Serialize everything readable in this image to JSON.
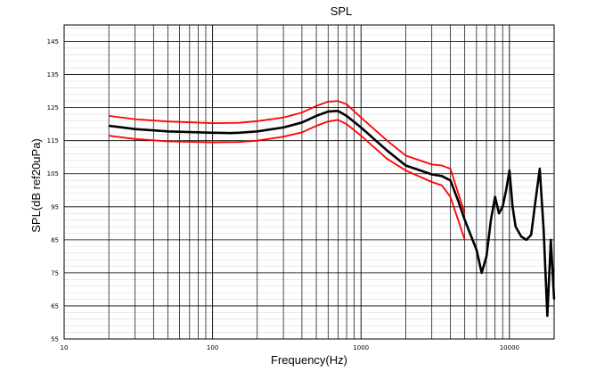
{
  "chart_data": {
    "type": "line",
    "title": "SPL",
    "xlabel": "Frequency(Hz)",
    "ylabel": "SPL(dB ref20uPa)",
    "xscale": "log",
    "xlim": [
      10,
      20000
    ],
    "ylim": [
      55,
      150
    ],
    "grid": true,
    "legend": "none",
    "x_ticks": [
      {
        "value": 10,
        "label": "10"
      },
      {
        "value": 100,
        "label": "100"
      },
      {
        "value": 1000,
        "label": "1000"
      },
      {
        "value": 10000,
        "label": "10000"
      }
    ],
    "y_ticks": [
      {
        "value": 55,
        "label": "55"
      },
      {
        "value": 65,
        "label": "65"
      },
      {
        "value": 75,
        "label": "75"
      },
      {
        "value": 85,
        "label": "85"
      },
      {
        "value": 95,
        "label": "95"
      },
      {
        "value": 105,
        "label": "105"
      },
      {
        "value": 115,
        "label": "115"
      },
      {
        "value": 125,
        "label": "125"
      },
      {
        "value": 135,
        "label": "135"
      },
      {
        "value": 145,
        "label": "145"
      }
    ],
    "series": [
      {
        "color": "#ff0000",
        "x": [
          20,
          30,
          50,
          100,
          150,
          200,
          300,
          400,
          500,
          600,
          700,
          800,
          1000,
          1500,
          2000,
          3000,
          3500,
          4000,
          5000
        ],
        "y": [
          122.5,
          121.5,
          120.8,
          120.3,
          120.4,
          120.9,
          122,
          123.5,
          125.5,
          126.8,
          127,
          126,
          122,
          115,
          110.5,
          107.8,
          107.5,
          106.5,
          93
        ]
      },
      {
        "color": "#000000",
        "x": [
          20,
          30,
          50,
          100,
          130,
          150,
          200,
          300,
          400,
          500,
          600,
          700,
          800,
          1000,
          1500,
          2000,
          3000,
          3500,
          4000,
          4500,
          5000,
          6000,
          6500,
          7000,
          7500,
          8000,
          8500,
          9000,
          9500,
          10000,
          10500,
          11000,
          12000,
          13000,
          14000,
          15000,
          16000,
          17000,
          18000,
          19000,
          20000
        ],
        "y": [
          119.5,
          118.5,
          117.8,
          117.4,
          117.3,
          117.4,
          117.8,
          119,
          120.5,
          122.5,
          123.8,
          124,
          122.5,
          119,
          112,
          107.5,
          104.8,
          104.3,
          103,
          97,
          91,
          82,
          75,
          80,
          91,
          98,
          93,
          95,
          100,
          106,
          95,
          89,
          86,
          85,
          86.5,
          97,
          106.5,
          88,
          62,
          85,
          67
        ]
      },
      {
        "color": "#ff0000",
        "x": [
          20,
          30,
          50,
          100,
          150,
          200,
          300,
          400,
          500,
          600,
          700,
          800,
          1000,
          1500,
          2000,
          3000,
          3500,
          4000,
          5000
        ],
        "y": [
          116.5,
          115.5,
          114.8,
          114.5,
          114.6,
          115,
          116.2,
          117.5,
          119.5,
          120.8,
          121.3,
          120,
          116.5,
          109.5,
          106,
          102.5,
          101.5,
          98,
          85
        ]
      }
    ]
  }
}
